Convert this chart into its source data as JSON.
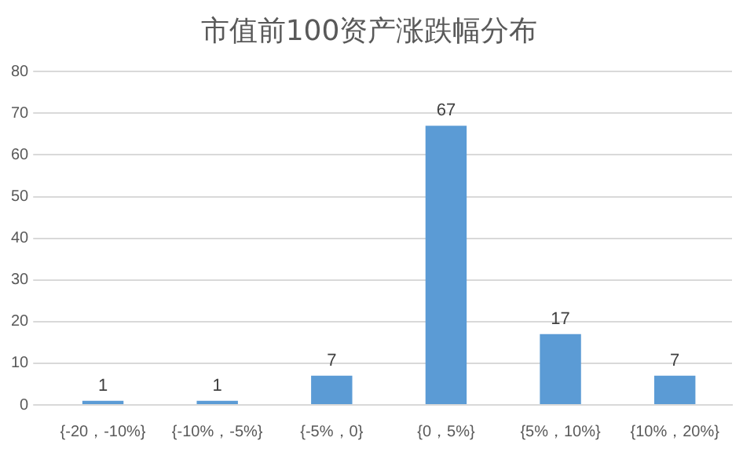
{
  "chart_data": {
    "type": "bar",
    "title": "市值前100资产涨跌幅分布",
    "categories": [
      "{-20，-10%}",
      "{-10%，-5%}",
      "{-5%，0}",
      "{0，5%}",
      "{5%，10%}",
      "{10%，20%}"
    ],
    "values": [
      1,
      1,
      7,
      67,
      17,
      7
    ],
    "color": "#5b9bd5",
    "ylim": [
      0,
      80
    ],
    "yticks": [
      0,
      10,
      20,
      30,
      40,
      50,
      60,
      70,
      80
    ],
    "grid": "y",
    "data_labels": true
  }
}
